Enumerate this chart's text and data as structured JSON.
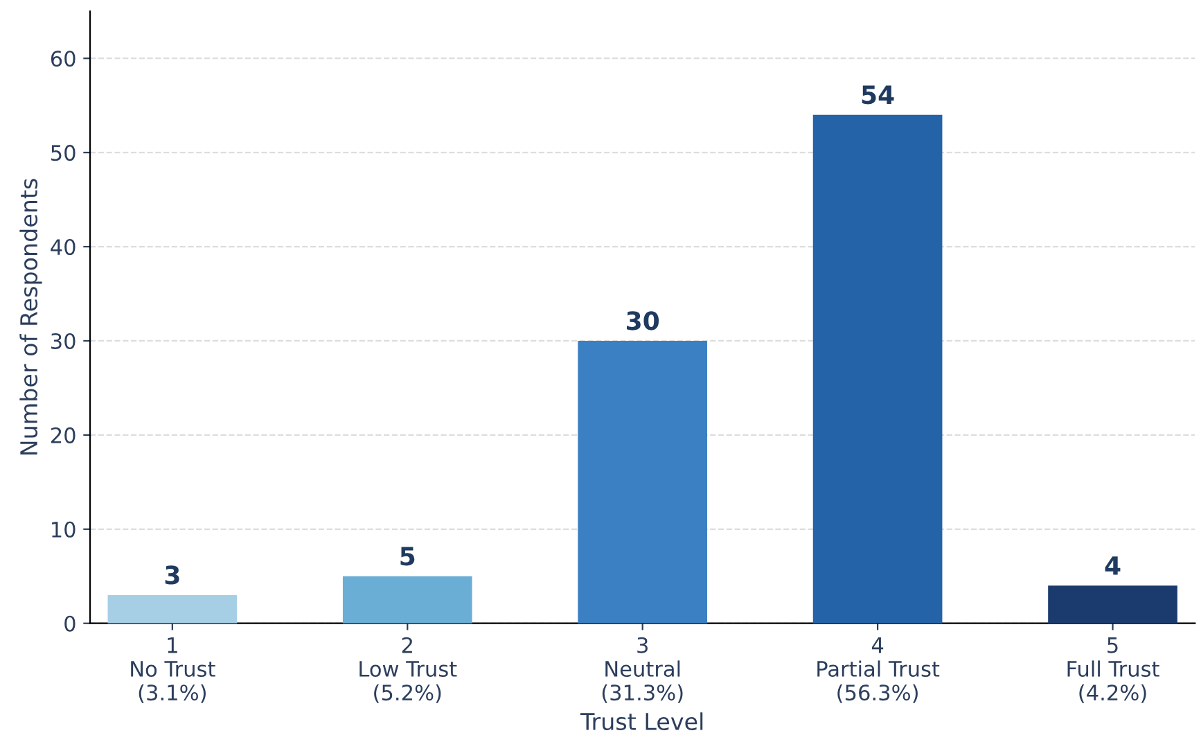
{
  "chart_data": {
    "type": "bar",
    "categories": [
      "1\nNo Trust\n(3.1%)",
      "2\nLow Trust\n(5.2%)",
      "3\nNeutral\n(31.3%)",
      "4\nPartial Trust\n(56.3%)",
      "5\nFull Trust\n(4.2%)"
    ],
    "values": [
      3,
      5,
      30,
      54,
      4
    ],
    "colors": [
      "#a6cfe6",
      "#6aaed6",
      "#3b80c2",
      "#2563a8",
      "#1b3a6e"
    ],
    "xlabel": "Trust Level",
    "ylabel": "Number of Respondents",
    "ylim": [
      0,
      65
    ],
    "yticks": [
      0,
      10,
      20,
      30,
      40,
      50,
      60
    ],
    "grid": "y",
    "data_labels": true,
    "legend": false
  }
}
